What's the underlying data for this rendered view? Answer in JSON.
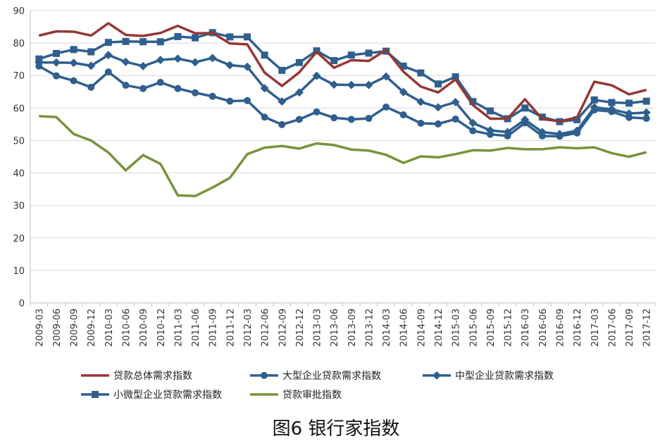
{
  "chart_data": {
    "type": "line",
    "title": "图6 银行家指数",
    "xlabel": "",
    "ylabel": "",
    "ylim": [
      0,
      90
    ],
    "yticks": [
      0,
      10,
      20,
      30,
      40,
      50,
      60,
      70,
      80,
      90
    ],
    "grid": "horizontal",
    "legend_position": "bottom",
    "categories": [
      "2009-03",
      "2009-06",
      "2009-09",
      "2009-12",
      "2010-03",
      "2010-06",
      "2010-09",
      "2010-12",
      "2011-03",
      "2011-06",
      "2011-09",
      "2011-12",
      "2012-03",
      "2012-06",
      "2012-09",
      "2012-12",
      "2013-03",
      "2013-06",
      "2013-09",
      "2013-12",
      "2014-03",
      "2014-06",
      "2014-09",
      "2014-12",
      "2015-03",
      "2015-06",
      "2015-09",
      "2015-12",
      "2016-03",
      "2016-06",
      "2016-09",
      "2016-12",
      "2017-03",
      "2017-06",
      "2017-09",
      "2017-12"
    ],
    "series": [
      {
        "name": "贷款总体需求指数",
        "color": "#953735",
        "marker": "none",
        "values": [
          82.3,
          83.6,
          83.5,
          82.3,
          86.1,
          82.5,
          82.2,
          83.1,
          85.3,
          83.0,
          83.1,
          79.9,
          79.6,
          70.9,
          66.8,
          71.0,
          77.3,
          72.4,
          74.7,
          74.5,
          77.9,
          71.2,
          66.6,
          64.8,
          68.8,
          60.9,
          56.7,
          56.7,
          62.7,
          56.6,
          55.9,
          57.1,
          68.1,
          67.0,
          64.2,
          65.6
        ]
      },
      {
        "name": "大型企业贷款需求指数",
        "color": "#2F5F8F",
        "marker": "circle",
        "values": [
          72.9,
          69.9,
          68.4,
          66.4,
          71.1,
          67.0,
          66.0,
          67.9,
          66.0,
          64.7,
          63.6,
          62.1,
          62.3,
          57.2,
          54.9,
          56.5,
          58.8,
          57.0,
          56.5,
          56.8,
          60.3,
          57.9,
          55.3,
          55.1,
          56.6,
          53.0,
          51.9,
          51.4,
          55.4,
          51.4,
          51.3,
          52.3,
          59.4,
          58.9,
          57.1,
          56.8
        ]
      },
      {
        "name": "中型企业贷款需求指数",
        "color": "#2F5F8F",
        "marker": "diamond",
        "values": [
          74.0,
          74.0,
          73.9,
          73.0,
          76.3,
          74.2,
          72.9,
          74.8,
          75.2,
          74.1,
          75.4,
          73.2,
          72.7,
          66.1,
          62.0,
          64.8,
          69.9,
          67.2,
          67.1,
          67.1,
          69.7,
          64.9,
          61.9,
          60.2,
          61.8,
          55.4,
          53.1,
          52.6,
          56.4,
          52.6,
          52.0,
          53.0,
          60.2,
          59.6,
          58.3,
          58.6
        ]
      },
      {
        "name": "小微型企业贷款需求指数",
        "color": "#2F5F8F",
        "marker": "square",
        "values": [
          75.1,
          76.8,
          78.0,
          77.3,
          80.2,
          80.5,
          80.4,
          80.4,
          82.0,
          81.6,
          83.2,
          81.9,
          81.9,
          76.3,
          71.6,
          74.0,
          77.6,
          74.6,
          76.3,
          76.9,
          77.5,
          72.9,
          70.8,
          67.4,
          69.6,
          62.0,
          59.1,
          56.7,
          60.0,
          57.2,
          55.8,
          56.4,
          62.5,
          61.7,
          61.5,
          62.1
        ]
      },
      {
        "name": "贷款审批指数",
        "color": "#77933C",
        "marker": "none",
        "values": [
          57.5,
          57.2,
          52.0,
          50.0,
          46.3,
          40.8,
          45.5,
          42.8,
          33.1,
          32.9,
          35.5,
          38.5,
          45.8,
          47.8,
          48.3,
          47.5,
          49.1,
          48.6,
          47.2,
          46.9,
          45.6,
          43.1,
          45.1,
          44.8,
          45.8,
          47.0,
          46.9,
          47.7,
          47.3,
          47.3,
          47.9,
          47.6,
          47.9,
          46.1,
          45.0,
          46.4
        ]
      }
    ]
  }
}
